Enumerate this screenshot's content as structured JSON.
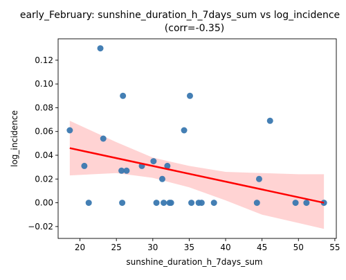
{
  "chart_data": {
    "type": "scatter",
    "title_line1": "early_February: sunshine_duration_h_7days_sum vs log_incidence",
    "title_line2": "(corr=-0.35)",
    "xlabel": "sunshine_duration_h_7days_sum",
    "ylabel": "log_incidence",
    "xlim": [
      17,
      55.2
    ],
    "ylim": [
      -0.03,
      0.138
    ],
    "xticks": [
      20,
      25,
      30,
      35,
      40,
      45,
      50,
      55
    ],
    "yticks": [
      -0.02,
      0.0,
      0.02,
      0.04,
      0.06,
      0.08,
      0.1,
      0.12
    ],
    "ytick_labels": [
      "−0.02",
      "0.00",
      "0.02",
      "0.04",
      "0.06",
      "0.08",
      "0.10",
      "0.12"
    ],
    "grid": false,
    "points": [
      {
        "x": 18.6,
        "y": 0.061
      },
      {
        "x": 20.6,
        "y": 0.031
      },
      {
        "x": 21.2,
        "y": 0.0
      },
      {
        "x": 22.8,
        "y": 0.13
      },
      {
        "x": 23.2,
        "y": 0.054
      },
      {
        "x": 25.7,
        "y": 0.027
      },
      {
        "x": 25.8,
        "y": 0.0
      },
      {
        "x": 25.9,
        "y": 0.09
      },
      {
        "x": 26.4,
        "y": 0.027
      },
      {
        "x": 28.5,
        "y": 0.031
      },
      {
        "x": 30.1,
        "y": 0.035
      },
      {
        "x": 30.5,
        "y": 0.0
      },
      {
        "x": 31.3,
        "y": 0.02
      },
      {
        "x": 31.5,
        "y": 0.0
      },
      {
        "x": 32.0,
        "y": 0.031
      },
      {
        "x": 32.3,
        "y": 0.0
      },
      {
        "x": 32.5,
        "y": 0.0
      },
      {
        "x": 34.3,
        "y": 0.061
      },
      {
        "x": 35.1,
        "y": 0.09
      },
      {
        "x": 35.3,
        "y": 0.0
      },
      {
        "x": 36.3,
        "y": 0.0
      },
      {
        "x": 36.7,
        "y": 0.0
      },
      {
        "x": 38.4,
        "y": 0.0
      },
      {
        "x": 44.3,
        "y": 0.0
      },
      {
        "x": 44.6,
        "y": 0.02
      },
      {
        "x": 46.1,
        "y": 0.069
      },
      {
        "x": 49.6,
        "y": 0.0
      },
      {
        "x": 51.1,
        "y": 0.0
      },
      {
        "x": 53.5,
        "y": 0.0
      }
    ],
    "regression_line": {
      "x": [
        18.6,
        53.5
      ],
      "y": [
        0.046,
        0.0
      ]
    },
    "confidence_band": {
      "x": [
        18.6,
        25,
        30,
        35,
        40,
        45,
        50,
        53.5
      ],
      "upper": [
        0.069,
        0.051,
        0.038,
        0.031,
        0.026,
        0.025,
        0.024,
        0.024
      ],
      "lower": [
        0.023,
        0.025,
        0.021,
        0.013,
        0.002,
        -0.01,
        -0.017,
        -0.022
      ]
    },
    "colors": {
      "points": "#3a78b0",
      "line": "#ff0000",
      "band": "#ffb6b6"
    }
  }
}
